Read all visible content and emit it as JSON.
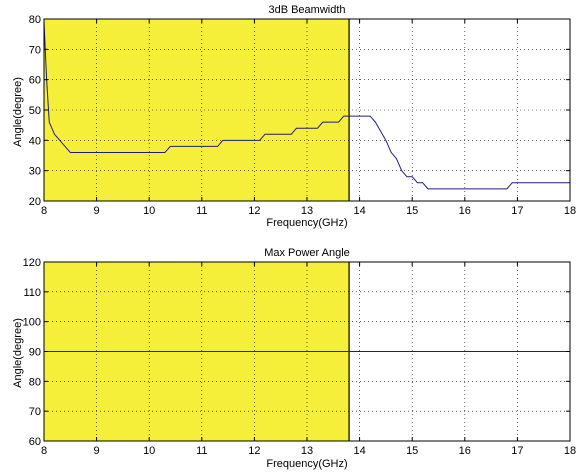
{
  "chart_data": [
    {
      "type": "line",
      "title": "3dB Beamwidth",
      "xlabel": "Frequency(GHz)",
      "ylabel": "Angle(degree)",
      "xlim": [
        8,
        18
      ],
      "ylim": [
        20,
        80
      ],
      "xticks": [
        8,
        9,
        10,
        11,
        12,
        13,
        14,
        15,
        16,
        17,
        18
      ],
      "yticks": [
        20,
        30,
        40,
        50,
        60,
        70,
        80
      ],
      "grid": true,
      "shaded_band": {
        "x": [
          8,
          13.8
        ],
        "color": "#f5ef3a"
      },
      "series": [
        {
          "color": "#1f1f7a",
          "x": [
            8,
            8.05,
            8.1,
            8.2,
            8.3,
            8.4,
            8.5,
            10.3,
            10.4,
            11.3,
            11.4,
            12.1,
            12.2,
            12.7,
            12.8,
            13.2,
            13.3,
            13.6,
            13.7,
            14.2,
            14.3,
            14.4,
            14.5,
            14.6,
            14.7,
            14.8,
            14.9,
            15.0,
            15.1,
            15.2,
            15.3,
            16.8,
            16.9,
            18
          ],
          "y": [
            79,
            60,
            46,
            42,
            40,
            38,
            36,
            36,
            38,
            38,
            40,
            40,
            42,
            42,
            44,
            44,
            46,
            46,
            48,
            48,
            46,
            43,
            40,
            36,
            34,
            30,
            28,
            28,
            26,
            26,
            24,
            24,
            26,
            26
          ]
        }
      ]
    },
    {
      "type": "line",
      "title": "Max Power Angle",
      "xlabel": "Frequency(GHz)",
      "ylabel": "Angle(degree)",
      "xlim": [
        8,
        18
      ],
      "ylim": [
        60,
        120
      ],
      "xticks": [
        8,
        9,
        10,
        11,
        12,
        13,
        14,
        15,
        16,
        17,
        18
      ],
      "yticks": [
        60,
        70,
        80,
        90,
        100,
        110,
        120
      ],
      "grid": true,
      "shaded_band": {
        "x": [
          8,
          13.8
        ],
        "color": "#f5ef3a"
      },
      "series": [
        {
          "color": "#1f1f7a",
          "x": [
            8,
            18
          ],
          "y": [
            90,
            90
          ]
        }
      ]
    }
  ]
}
